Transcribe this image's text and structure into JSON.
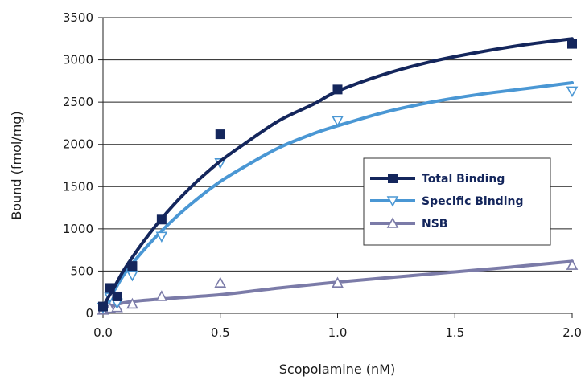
{
  "chart_data": {
    "type": "scatter",
    "xlabel": "Scopolamine (nM)",
    "ylabel": "Bound (fmol/mg)",
    "xlim": [
      0,
      2
    ],
    "ylim": [
      0,
      3500
    ],
    "x_ticks": [
      "0.0",
      "0.5",
      "1.0",
      "1.5",
      "2.0"
    ],
    "y_ticks": [
      "0",
      "500",
      "1000",
      "1500",
      "2000",
      "2500",
      "3000",
      "3500"
    ],
    "grid": "horizontal",
    "legend_position": "right",
    "series": [
      {
        "name": "Total Binding",
        "marker": "square",
        "color": "#14265c",
        "points": [
          [
            0.0,
            80
          ],
          [
            0.03,
            300
          ],
          [
            0.06,
            200
          ],
          [
            0.125,
            560
          ],
          [
            0.25,
            1110
          ],
          [
            0.5,
            2120
          ],
          [
            1.0,
            2650
          ],
          [
            2.0,
            3190
          ]
        ],
        "fit": [
          [
            0.0,
            80
          ],
          [
            0.05,
            320
          ],
          [
            0.1,
            560
          ],
          [
            0.2,
            950
          ],
          [
            0.3,
            1280
          ],
          [
            0.4,
            1560
          ],
          [
            0.5,
            1800
          ],
          [
            0.6,
            2000
          ],
          [
            0.75,
            2280
          ],
          [
            0.9,
            2480
          ],
          [
            1.0,
            2630
          ],
          [
            1.2,
            2830
          ],
          [
            1.4,
            2980
          ],
          [
            1.6,
            3090
          ],
          [
            1.8,
            3180
          ],
          [
            2.0,
            3250
          ]
        ]
      },
      {
        "name": "Specific Binding",
        "marker": "triangle-down",
        "color": "#4a97d4",
        "points": [
          [
            0.0,
            70
          ],
          [
            0.03,
            190
          ],
          [
            0.06,
            120
          ],
          [
            0.125,
            450
          ],
          [
            0.25,
            910
          ],
          [
            0.5,
            1780
          ],
          [
            1.0,
            2280
          ],
          [
            2.0,
            2630
          ]
        ],
        "fit": [
          [
            0.0,
            60
          ],
          [
            0.05,
            280
          ],
          [
            0.1,
            500
          ],
          [
            0.2,
            830
          ],
          [
            0.3,
            1110
          ],
          [
            0.4,
            1350
          ],
          [
            0.5,
            1560
          ],
          [
            0.6,
            1730
          ],
          [
            0.75,
            1960
          ],
          [
            0.9,
            2130
          ],
          [
            1.0,
            2220
          ],
          [
            1.2,
            2380
          ],
          [
            1.4,
            2500
          ],
          [
            1.6,
            2590
          ],
          [
            1.8,
            2660
          ],
          [
            2.0,
            2730
          ]
        ]
      },
      {
        "name": "NSB",
        "marker": "triangle-up",
        "color": "#7b7ba8",
        "points": [
          [
            0.0,
            40
          ],
          [
            0.03,
            60
          ],
          [
            0.06,
            70
          ],
          [
            0.125,
            110
          ],
          [
            0.25,
            200
          ],
          [
            0.5,
            360
          ],
          [
            1.0,
            360
          ],
          [
            2.0,
            570
          ]
        ],
        "fit": [
          [
            0.0,
            60
          ],
          [
            0.1,
            130
          ],
          [
            0.25,
            170
          ],
          [
            0.5,
            220
          ],
          [
            0.75,
            300
          ],
          [
            1.0,
            370
          ],
          [
            1.25,
            430
          ],
          [
            1.5,
            490
          ],
          [
            1.75,
            550
          ],
          [
            2.0,
            615
          ]
        ]
      }
    ]
  }
}
